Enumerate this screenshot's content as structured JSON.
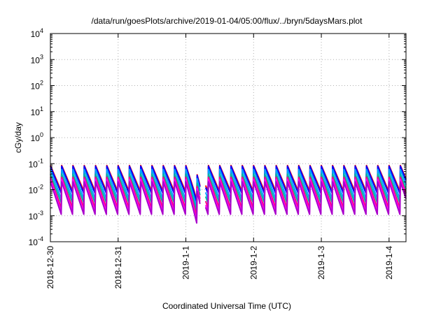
{
  "chart_data": {
    "type": "line",
    "title": "/data/run/goesPlots/archive/2019-01-04/05:00/flux/../bryn/5daysMars.plot",
    "xlabel": "Coordinated Universal Time (UTC)",
    "ylabel": "cGy/day",
    "yscale": "log",
    "ylim": [
      0.0001,
      10000
    ],
    "y_ticks": [
      {
        "value": 0.0001,
        "base": "10",
        "exp": "-4"
      },
      {
        "value": 0.001,
        "base": "10",
        "exp": "-3"
      },
      {
        "value": 0.01,
        "base": "10",
        "exp": "-2"
      },
      {
        "value": 0.1,
        "base": "10",
        "exp": "-1"
      },
      {
        "value": 1,
        "base": "10",
        "exp": "0"
      },
      {
        "value": 10,
        "base": "10",
        "exp": "1"
      },
      {
        "value": 100,
        "base": "10",
        "exp": "2"
      },
      {
        "value": 1000,
        "base": "10",
        "exp": "3"
      },
      {
        "value": 10000,
        "base": "10",
        "exp": "4"
      }
    ],
    "xlim": [
      "2018-12-30",
      "2019-01-04T06:00"
    ],
    "x_ticks": [
      "2018-12-30",
      "2018-12-31",
      "2019-1-1",
      "2019-1-2",
      "2019-1-3",
      "2019-1-4"
    ],
    "grid": true,
    "sawtooth_period_hours": 4,
    "gap": [
      "2019-01-01T05:00",
      "2019-01-01T07:00"
    ],
    "dip": {
      "start": "2019-01-01T00:00",
      "end": "2019-01-01T05:00",
      "min_scale": 0.3
    },
    "series": [
      {
        "color": "#ff0000",
        "peak": 0.085,
        "trough": 0.008
      },
      {
        "color": "#0000ff",
        "peak": 0.08,
        "trough": 0.0065
      },
      {
        "color": "#00a0ff",
        "peak": 0.06,
        "trough": 0.004
      },
      {
        "color": "#00b4a0",
        "peak": 0.04,
        "trough": 0.0028
      },
      {
        "color": "#ff0080",
        "peak": 0.03,
        "trough": 0.0018
      },
      {
        "color": "#ff00ff",
        "peak": 0.025,
        "trough": 0.0012
      },
      {
        "color": "#aa00cc",
        "peak": 0.02,
        "trough": 0.001
      }
    ]
  }
}
